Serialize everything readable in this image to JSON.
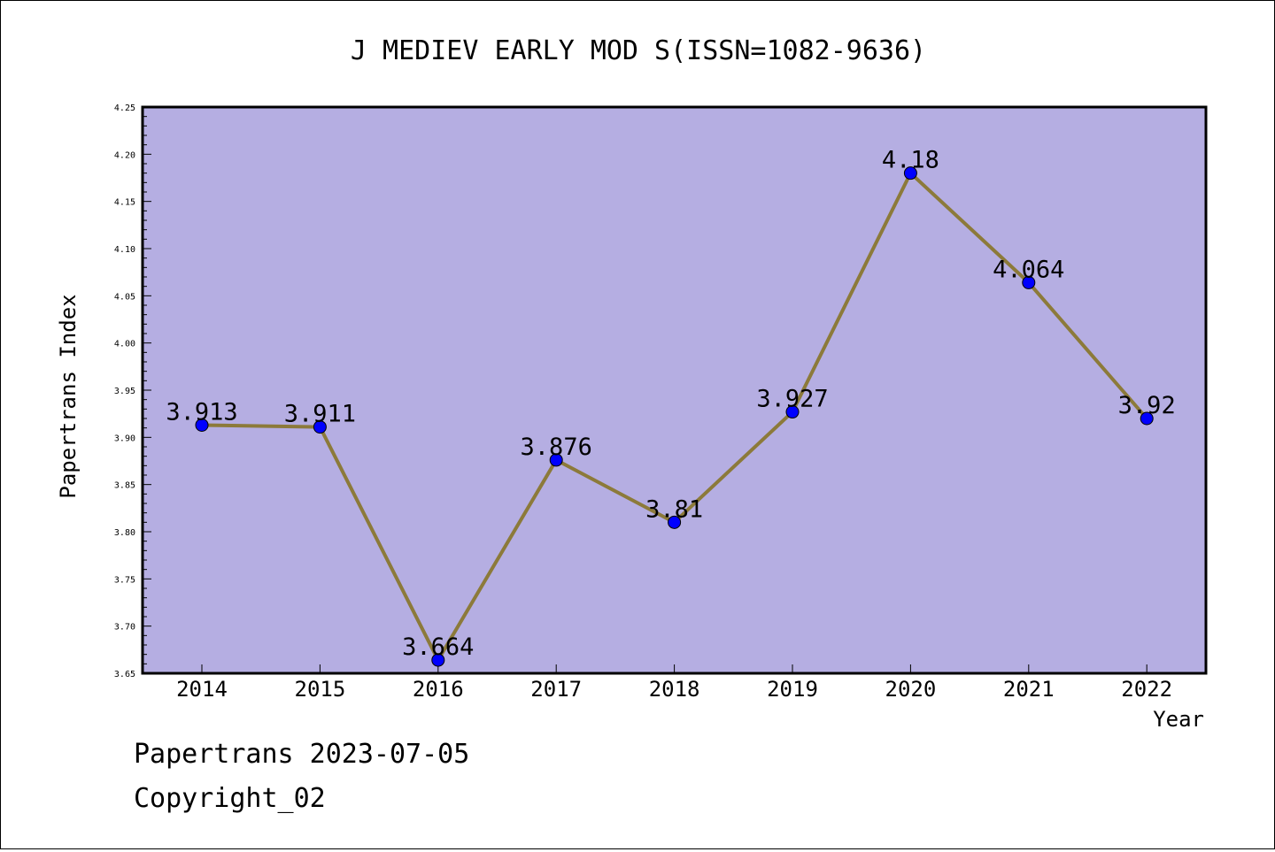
{
  "chart_data": {
    "type": "line",
    "title": "J MEDIEV EARLY MOD S(ISSN=1082-9636)",
    "xlabel": "Year",
    "ylabel": "Papertrans Index",
    "categories": [
      "2014",
      "2015",
      "2016",
      "2017",
      "2018",
      "2019",
      "2020",
      "2021",
      "2022"
    ],
    "values": [
      3.913,
      3.911,
      3.664,
      3.876,
      3.81,
      3.927,
      4.18,
      4.064,
      3.92
    ],
    "data_labels": [
      "3.913",
      "3.911",
      "3.664",
      "3.876",
      "3.81",
      "3.927",
      "4.18",
      "4.064",
      "3.92"
    ],
    "ylim": [
      3.65,
      4.25
    ],
    "yticks": [
      "3.65",
      "3.70",
      "3.75",
      "3.80",
      "3.85",
      "3.90",
      "3.95",
      "4.00",
      "4.05",
      "4.10",
      "4.15",
      "4.20",
      "4.25"
    ],
    "grid": false,
    "colors": {
      "plot_background": "#b5aee2",
      "line": "#8c7a3a",
      "marker": "#0000ff"
    }
  },
  "footer": {
    "line1": "Papertrans 2023-07-05",
    "line2": "Copyright_02"
  }
}
